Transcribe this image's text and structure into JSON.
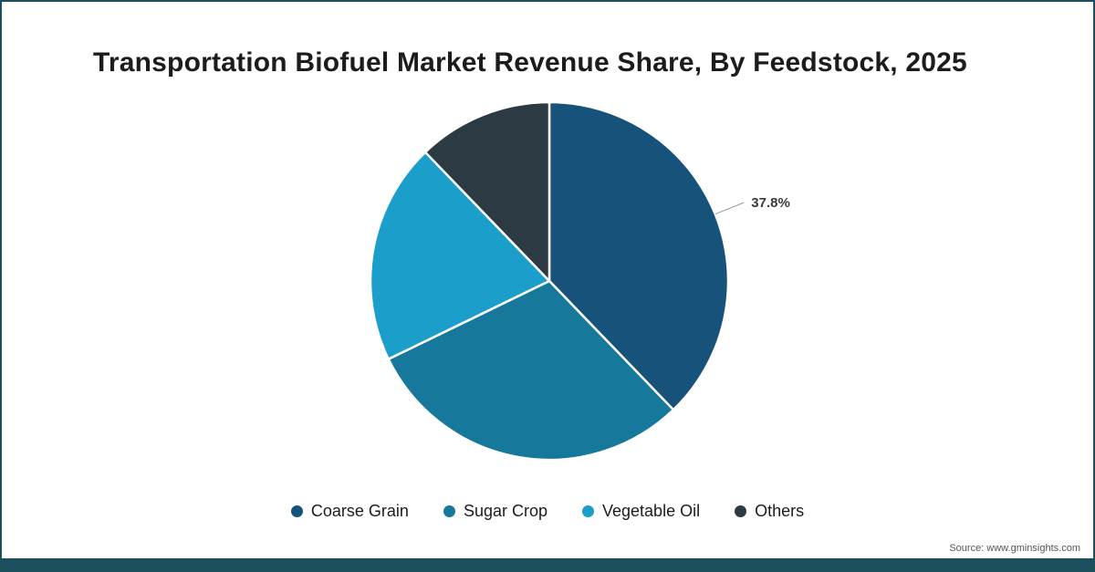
{
  "page": {
    "source": "Source: www.gminsights.com",
    "border_color": "#1c4f5c",
    "background": "#ffffff"
  },
  "chart_data": {
    "type": "pie",
    "title": "Transportation Biofuel Market Revenue Share, By Feedstock, 2025",
    "direction": "clockwise",
    "start_angle_deg": 0,
    "legend_position": "bottom",
    "slices": [
      {
        "label": "Coarse Grain",
        "value": 37.8,
        "color": "#17527a",
        "data_label": "37.8%",
        "show_label": true
      },
      {
        "label": "Sugar Crop",
        "value": 30.0,
        "color": "#16789b",
        "data_label": "",
        "show_label": false
      },
      {
        "label": "Vegetable Oil",
        "value": 20.0,
        "color": "#1b9ec9",
        "data_label": "",
        "show_label": false
      },
      {
        "label": "Others",
        "value": 12.2,
        "color": "#2c3a43",
        "data_label": "",
        "show_label": false
      }
    ]
  }
}
